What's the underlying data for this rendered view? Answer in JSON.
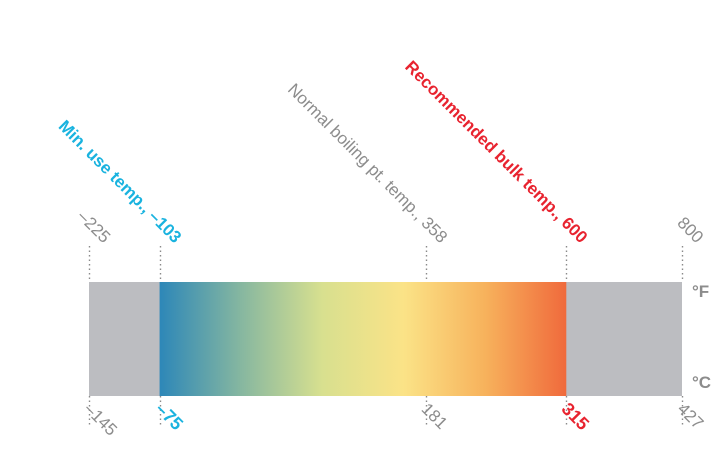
{
  "colors": {
    "gray_band": "#bcbdc1",
    "tick_gray": "#8a8a8a",
    "label_gray": "#8c8c8c",
    "accent_cyan": "#1ab3df",
    "accent_red": "#e8232f",
    "gradient_stops": [
      "#2d87b8",
      "#86b7a0",
      "#d8e08f",
      "#fbe387",
      "#f7b25c",
      "#f06a3c"
    ]
  },
  "scale": {
    "range_fahrenheit": [
      -225,
      800
    ],
    "range_celsius": [
      -145,
      427
    ],
    "gradient_range_fahrenheit": [
      -103,
      600
    ],
    "unit_top": "°F",
    "unit_bottom": "°C"
  },
  "markers": [
    {
      "id": "range-min",
      "fahrenheit": -225,
      "celsius": -145,
      "top_label": "–225",
      "bottom_label": "–145",
      "emphasis": "plain",
      "color": "#8c8c8c"
    },
    {
      "id": "min-use-temp",
      "fahrenheit": -103,
      "celsius": -75,
      "top_label": "Min. use temp., –103",
      "bottom_label": "–75",
      "emphasis": "highlighted",
      "color": "#1ab3df"
    },
    {
      "id": "normal-boiling",
      "fahrenheit": 358,
      "celsius": 181,
      "top_label": "Normal boiling pt. temp., 358",
      "bottom_label": "181",
      "emphasis": "plain",
      "color": "#8c8c8c"
    },
    {
      "id": "recommended-bulk",
      "fahrenheit": 600,
      "celsius": 315,
      "top_label": "Recommended bulk temp., 600",
      "bottom_label": "315",
      "emphasis": "highlighted",
      "color": "#e8232f"
    },
    {
      "id": "range-max",
      "fahrenheit": 800,
      "celsius": 427,
      "top_label": "800",
      "bottom_label": "427",
      "emphasis": "plain",
      "color": "#8c8c8c"
    }
  ]
}
